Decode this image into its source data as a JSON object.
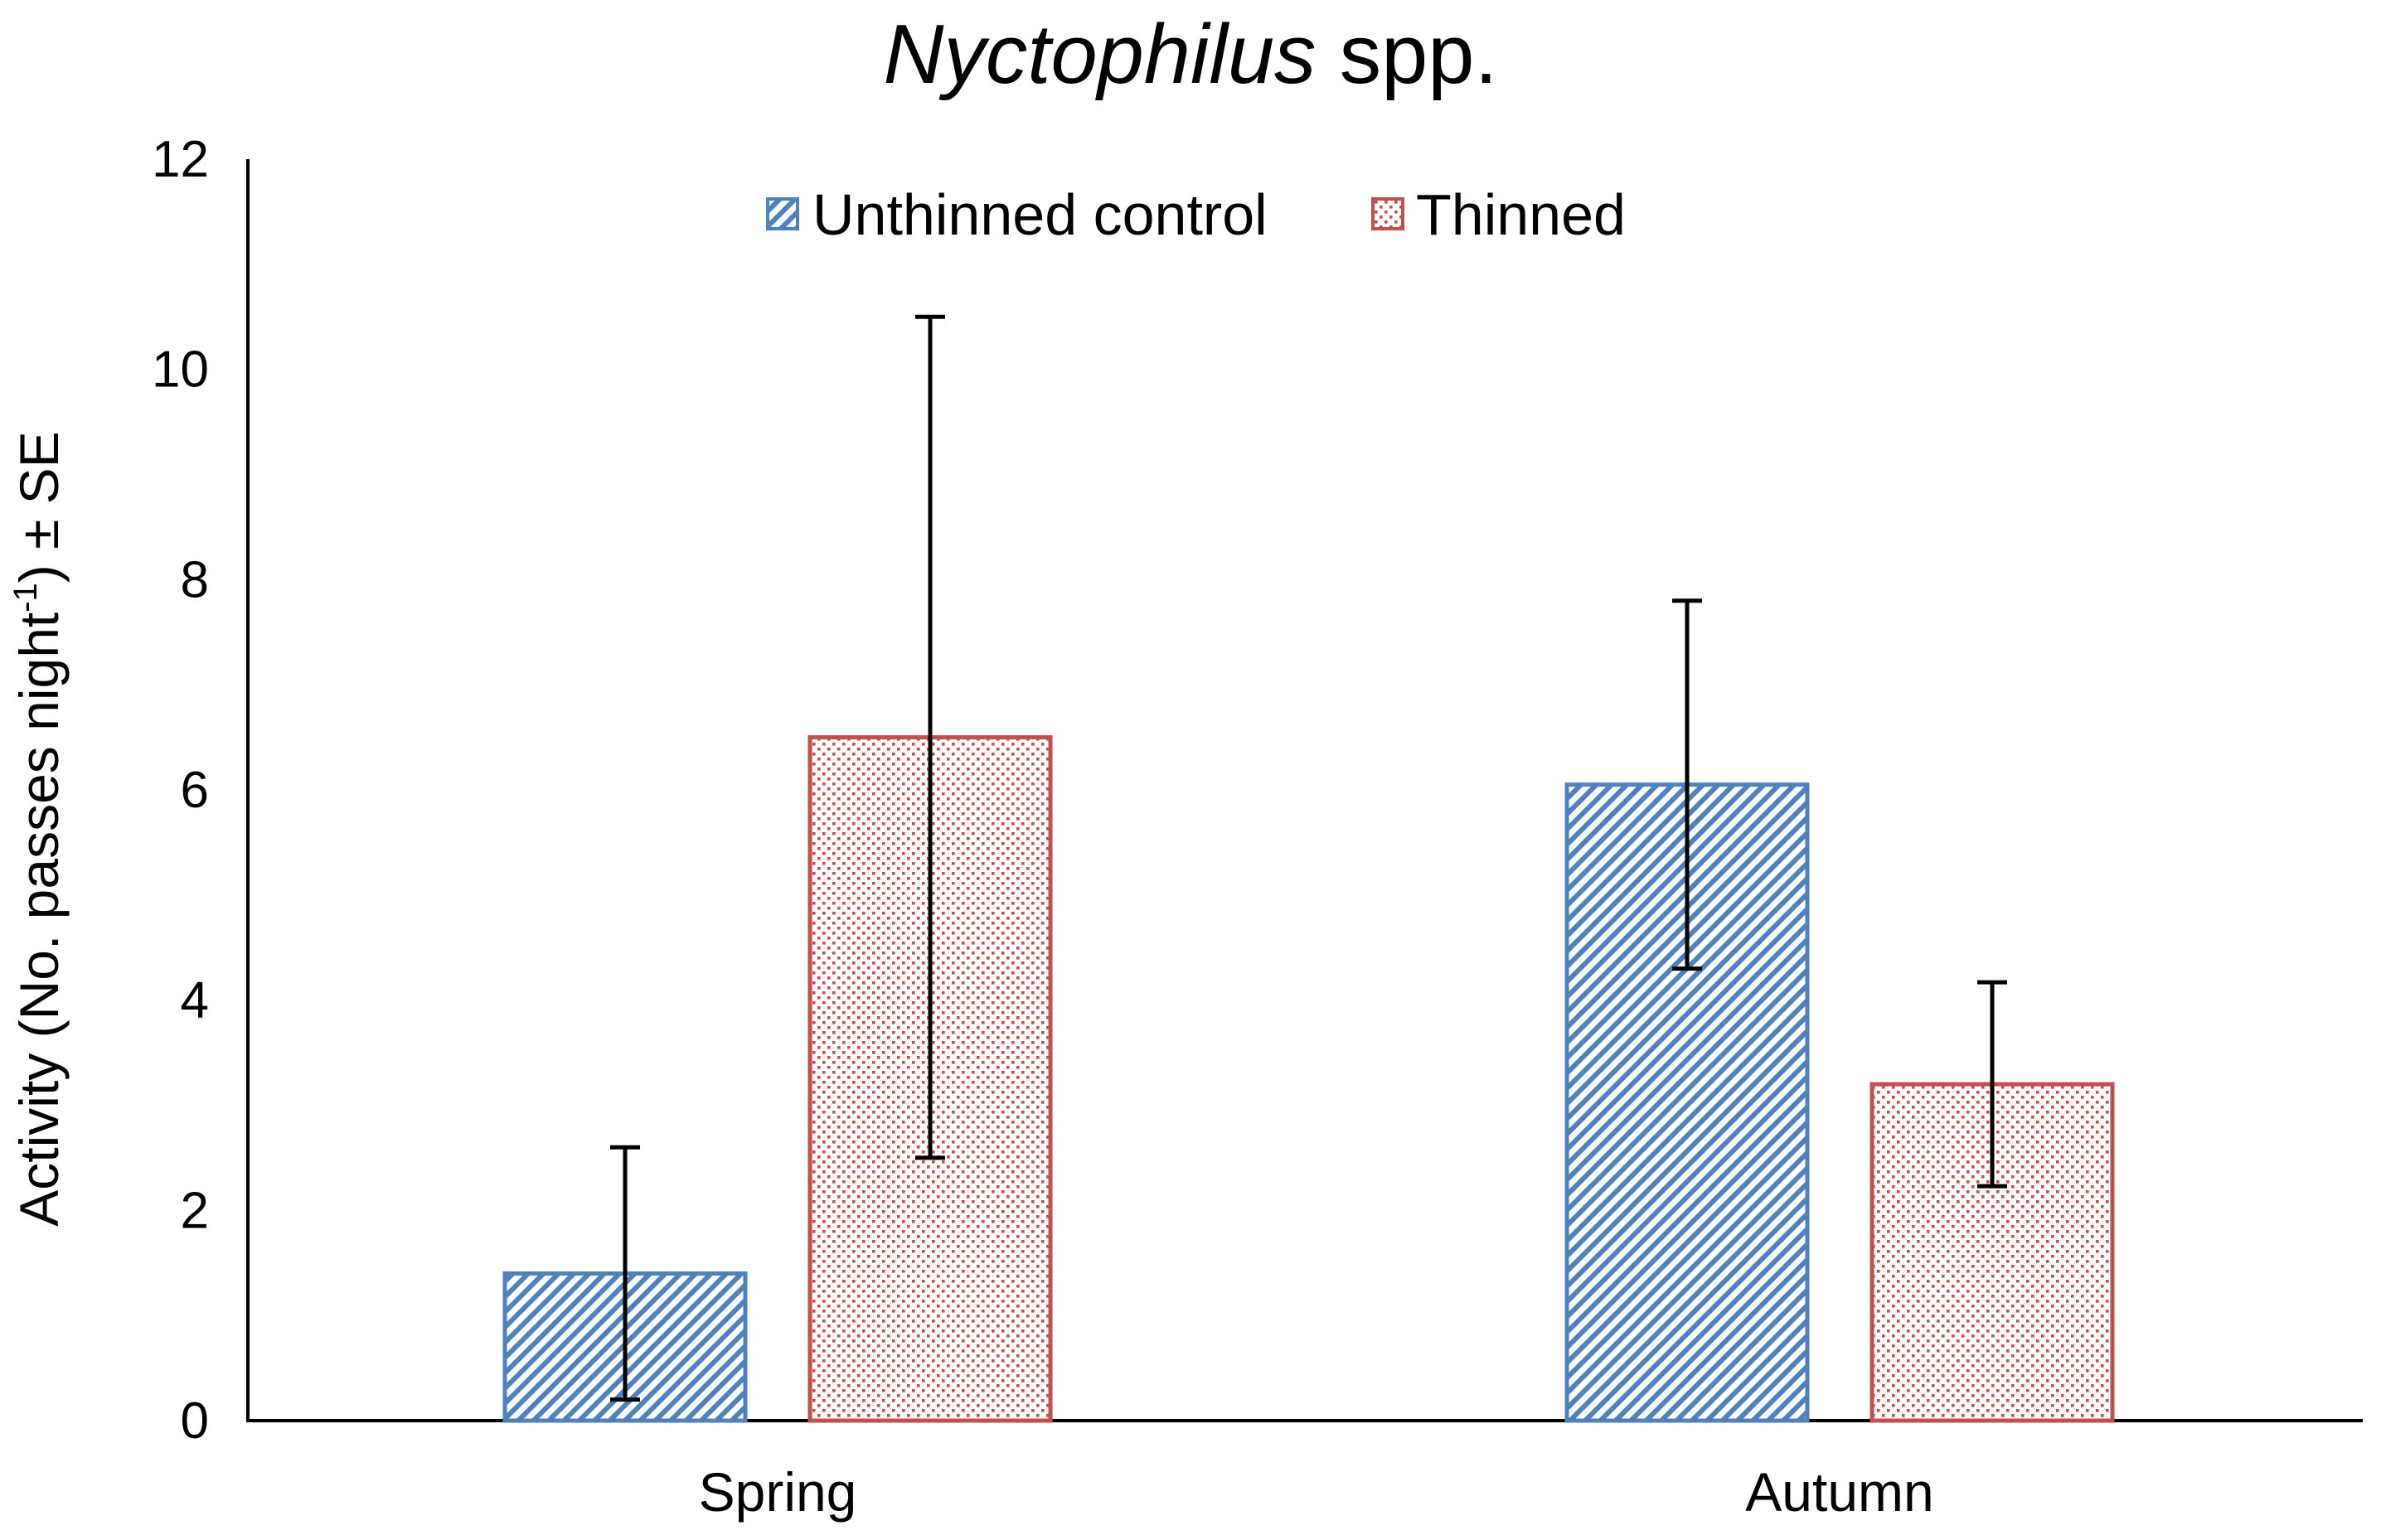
{
  "chart_data": {
    "type": "bar",
    "title": {
      "italic": "Nyctophilus",
      "rest": " spp."
    },
    "ylabel": {
      "main": "Activity (No. passes night",
      "sup": "-1",
      "tail": ") ± SE"
    },
    "xlabel": "",
    "categories": [
      "Spring",
      "Autumn"
    ],
    "ylim": [
      0,
      12
    ],
    "yticks": [
      0,
      2,
      4,
      6,
      8,
      10,
      12
    ],
    "grid": false,
    "legend_position": "top-center",
    "series": [
      {
        "name": "Unthinned control",
        "values": [
          1.4,
          6.05
        ],
        "error": [
          1.2,
          1.75
        ],
        "color": "#4f81bd",
        "pattern": "diagonal-stripes"
      },
      {
        "name": "Thinned",
        "values": [
          6.5,
          3.2
        ],
        "error": [
          4.0,
          0.97
        ],
        "color": "#c0504d",
        "pattern": "dots"
      }
    ]
  }
}
